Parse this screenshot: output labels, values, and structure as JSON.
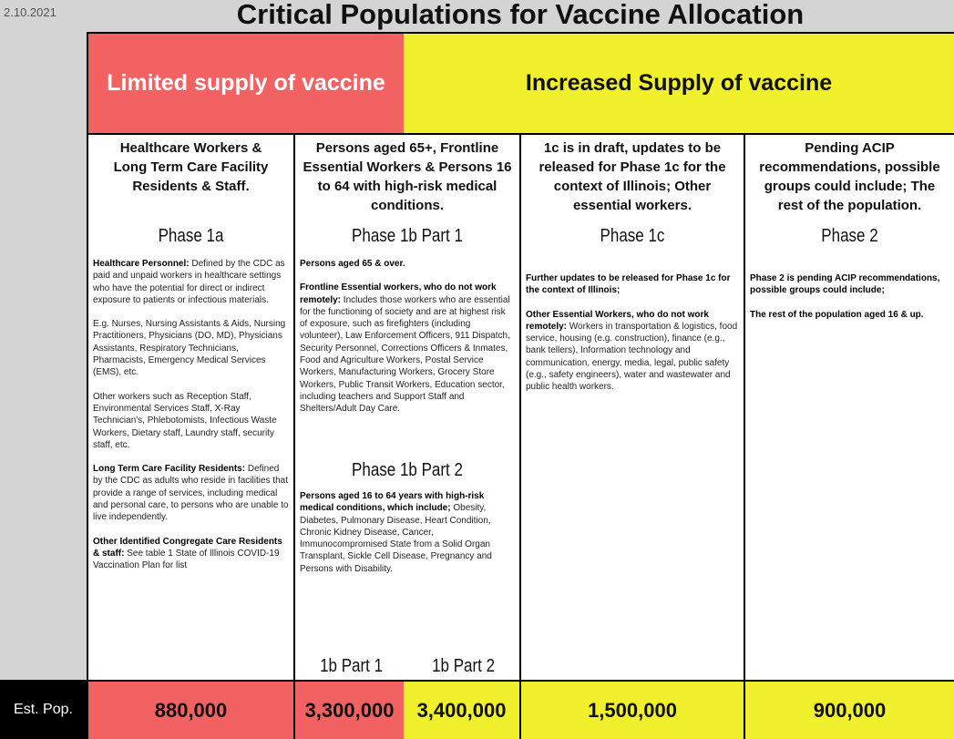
{
  "date": "2.10.2021",
  "title": "Critical Populations for Vaccine Allocation",
  "supply": {
    "limited": "Limited supply of vaccine",
    "increased": "Increased Supply of vaccine"
  },
  "columns": [
    {
      "heading": "Healthcare Workers & Long Term Care Facility Residents & Staff.",
      "phase": "Phase 1a",
      "paras": [
        {
          "bold": "Healthcare Personnel:",
          "text": " Defined by the CDC as paid and unpaid workers in healthcare settings who have the potential for direct or indirect exposure to patients or infectious materials."
        },
        {
          "bold": "",
          "text": "E.g. Nurses, Nursing Assistants & Aids, Nursing Practitioners, Physicians (DO, MD), Physicians Assistants, Respiratory Technicians, Pharmacists, Emergency Medical Services (EMS), etc."
        },
        {
          "bold": "",
          "text": "Other workers such as Reception Staff, Environmental Services Staff,  X-Ray Technician's, Phlebotomists, Infectious Waste Workers, Dietary staff, Laundry staff, security staff, etc."
        },
        {
          "bold": "Long Term Care Facility Residents:",
          "text": " Defined by the CDC as adults who reside in facilities that provide a range of services, including medical and personal care, to persons who are unable to live independently."
        },
        {
          "bold": "Other Identified Congregate Care Residents & staff:",
          "text": " See table 1 State of Illinois COVID-19 Vaccination Plan for list"
        }
      ]
    },
    {
      "heading": "Persons aged 65+, Frontline Essential Workers & Persons 16 to 64 with high-risk medical conditions.",
      "phase": "Phase 1b Part 1",
      "paras": [
        {
          "bold": "Persons aged 65 & over.",
          "text": ""
        },
        {
          "bold": "Frontline Essential workers, who do not work remotely:",
          "text": " Includes those workers who are essential for the functioning of society and are at highest risk of exposure, such as  firefighters (including volunteer),  Law Enforcement Officers, 911 Dispatch, Security Personnel, Corrections Officers & Inmates, Food and Agriculture Workers, Postal Service Workers, Manufacturing Workers, Grocery Store Workers, Public Transit Workers, Education sector, including teachers and Support Staff and Shelters/Adult Day Care."
        }
      ],
      "phase2": "Phase 1b Part 2",
      "paras2": [
        {
          "bold": "Persons aged 16 to 64 years with high-risk medical conditions, which include;",
          "text": " Obesity, Diabetes, Pulmonary Disease, Heart Condition, Chronic Kidney Disease, Cancer, Immunocompromised State from a Solid Organ Transplant, Sickle Cell Disease, Pregnancy and Persons with Disability."
        }
      ],
      "sublabels": [
        "1b Part 1",
        "1b Part 2"
      ]
    },
    {
      "heading": "1c is in draft, updates to be released for Phase 1c for the context of Illinois; Other essential workers.",
      "phase": "Phase 1c",
      "paras": [
        {
          "bold": "Further updates to be released for Phase 1c for the context of Illinois;",
          "text": ""
        },
        {
          "bold": "Other Essential Workers, who do not work remotely:",
          "text": " Workers in transportation & logistics, food service, housing (e.g. construction), finance (e.g., bank tellers), Information technology and communication, energy, media, legal, public safety (e.g., safety engineers), water and wastewater and public health workers."
        }
      ]
    },
    {
      "heading": "Pending ACIP recommendations, possible groups could include; The rest of the population.",
      "phase": "Phase 2",
      "paras": [
        {
          "bold": "Phase 2 is pending ACIP recommendations, possible groups could include;",
          "text": ""
        },
        {
          "bold": "The rest of the population aged 16 & up.",
          "text": ""
        }
      ]
    }
  ],
  "est_pop": {
    "label": "Est. Pop.",
    "values": [
      "880,000",
      "3,300,000",
      "3,400,000",
      "1,500,000",
      "900,000"
    ]
  },
  "colors": {
    "red": "#f26262",
    "yellow": "#f0f02c"
  }
}
